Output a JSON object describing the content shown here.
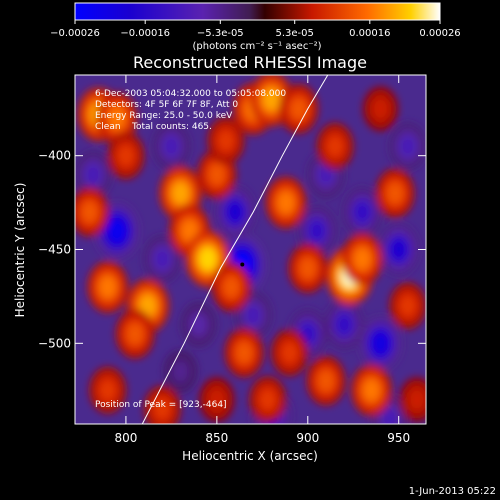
{
  "chart_data": {
    "type": "heatmap",
    "title": "Reconstructed RHESSI Image",
    "xlabel": "Heliocentric X (arcsec)",
    "ylabel": "Heliocentric Y (arcsec)",
    "xlim": [
      772,
      965
    ],
    "ylim": [
      -543,
      -357
    ],
    "x_ticks": [
      800,
      850,
      900,
      950
    ],
    "y_ticks": [
      -400,
      -450,
      -500
    ],
    "colorbar": {
      "label": "(photons cm⁻² s⁻¹ asec⁻²)",
      "range": [
        -0.00026,
        0.00026
      ],
      "ticks": [
        "-0.00026",
        "-0.00016",
        "-5.3e-05",
        "5.3e-05",
        "0.00016",
        "0.00026"
      ]
    },
    "annotations": [
      "6-Dec-2003 05:04:32.000 to 05:05:08.000",
      "Detectors: 4F 5F 6F 7F 8F, Att 0",
      "Energy Range: 25.0 - 50.0 keV",
      "Clean    Total counts: 465.",
      "Position of Peak = [923,-464]"
    ],
    "peak_position": [
      923,
      -464
    ],
    "limb_curve": {
      "x": [
        809,
        832,
        852,
        870,
        886,
        900,
        911
      ],
      "y": [
        -543,
        -500,
        -460,
        -430,
        -400,
        -375,
        -357
      ]
    },
    "blobs_positive": [
      {
        "x": 785,
        "y": -378,
        "v": 0.8
      },
      {
        "x": 795,
        "y": -380,
        "v": 0.7
      },
      {
        "x": 780,
        "y": -430,
        "v": 0.6
      },
      {
        "x": 800,
        "y": -400,
        "v": 0.5
      },
      {
        "x": 790,
        "y": -470,
        "v": 0.7
      },
      {
        "x": 812,
        "y": -480,
        "v": 0.8
      },
      {
        "x": 805,
        "y": -495,
        "v": 0.6
      },
      {
        "x": 830,
        "y": -420,
        "v": 0.8
      },
      {
        "x": 835,
        "y": -440,
        "v": 0.7
      },
      {
        "x": 845,
        "y": -455,
        "v": 0.9
      },
      {
        "x": 850,
        "y": -410,
        "v": 0.6
      },
      {
        "x": 855,
        "y": -392,
        "v": 0.5
      },
      {
        "x": 858,
        "y": -470,
        "v": 0.6
      },
      {
        "x": 870,
        "y": -375,
        "v": 0.7
      },
      {
        "x": 880,
        "y": -370,
        "v": 0.8
      },
      {
        "x": 895,
        "y": -375,
        "v": 0.6
      },
      {
        "x": 888,
        "y": -425,
        "v": 0.7
      },
      {
        "x": 900,
        "y": -460,
        "v": 0.6
      },
      {
        "x": 915,
        "y": -395,
        "v": 0.5
      },
      {
        "x": 923,
        "y": -464,
        "v": 1.0
      },
      {
        "x": 930,
        "y": -455,
        "v": 0.7
      },
      {
        "x": 935,
        "y": -525,
        "v": 0.7
      },
      {
        "x": 948,
        "y": -420,
        "v": 0.6
      },
      {
        "x": 955,
        "y": -480,
        "v": 0.5
      },
      {
        "x": 910,
        "y": -520,
        "v": 0.6
      },
      {
        "x": 890,
        "y": -505,
        "v": 0.5
      },
      {
        "x": 865,
        "y": -505,
        "v": 0.6
      },
      {
        "x": 878,
        "y": -530,
        "v": 0.5
      },
      {
        "x": 790,
        "y": -525,
        "v": 0.5
      },
      {
        "x": 820,
        "y": -535,
        "v": 0.5
      },
      {
        "x": 850,
        "y": -530,
        "v": 0.4
      },
      {
        "x": 960,
        "y": -530,
        "v": 0.4
      },
      {
        "x": 940,
        "y": -375,
        "v": 0.4
      }
    ],
    "blobs_negative": [
      {
        "x": 795,
        "y": -440,
        "v": -0.9
      },
      {
        "x": 782,
        "y": -410,
        "v": -0.5
      },
      {
        "x": 864,
        "y": -458,
        "v": -1.0
      },
      {
        "x": 860,
        "y": -430,
        "v": -0.7
      },
      {
        "x": 820,
        "y": -455,
        "v": -0.5
      },
      {
        "x": 905,
        "y": -440,
        "v": -0.6
      },
      {
        "x": 930,
        "y": -430,
        "v": -0.6
      },
      {
        "x": 950,
        "y": -450,
        "v": -0.7
      },
      {
        "x": 940,
        "y": -500,
        "v": -0.8
      },
      {
        "x": 920,
        "y": -490,
        "v": -0.6
      },
      {
        "x": 900,
        "y": -495,
        "v": -0.6
      },
      {
        "x": 870,
        "y": -485,
        "v": -0.5
      },
      {
        "x": 880,
        "y": -538,
        "v": -0.7
      },
      {
        "x": 840,
        "y": -490,
        "v": -0.4
      },
      {
        "x": 825,
        "y": -395,
        "v": -0.5
      },
      {
        "x": 910,
        "y": -410,
        "v": -0.5
      },
      {
        "x": 955,
        "y": -395,
        "v": -0.5
      },
      {
        "x": 945,
        "y": -540,
        "v": -0.5
      },
      {
        "x": 830,
        "y": -515,
        "v": -0.3
      }
    ]
  },
  "footer": {
    "timestamp": "1-Jun-2013 05:22"
  }
}
